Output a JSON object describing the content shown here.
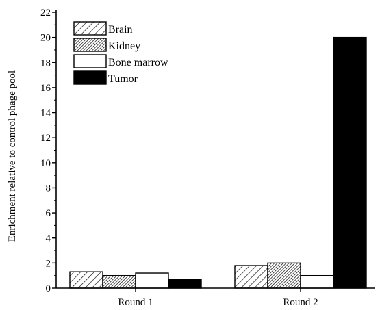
{
  "chart_data": {
    "type": "bar",
    "title": "",
    "xlabel": "",
    "ylabel": "Enrichment relative to control phage pool",
    "ylim": [
      0,
      22
    ],
    "yticks": [
      0,
      2,
      4,
      6,
      8,
      10,
      12,
      14,
      16,
      18,
      20,
      22
    ],
    "categories": [
      "Round 1",
      "Round 2"
    ],
    "legend_position": "top-left",
    "grid": false,
    "series": [
      {
        "name": "Brain",
        "pattern": "diagonal-hatch",
        "values": [
          1.3,
          1.8
        ]
      },
      {
        "name": "Kidney",
        "pattern": "dense-crosshatch",
        "values": [
          1.0,
          2.0
        ]
      },
      {
        "name": "Bone marrow",
        "pattern": "solid-white",
        "values": [
          1.2,
          1.0
        ]
      },
      {
        "name": "Tumor",
        "pattern": "solid-black",
        "values": [
          0.7,
          20.0
        ]
      }
    ]
  }
}
